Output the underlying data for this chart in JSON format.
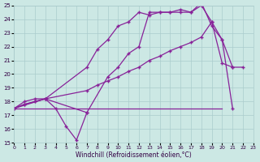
{
  "xlabel": "Windchill (Refroidissement éolien,°C)",
  "xlim": [
    0,
    23
  ],
  "ylim": [
    15,
    25
  ],
  "bg_color": "#cce8e4",
  "grid_color": "#aacccc",
  "line_color": "#882299",
  "series": [
    {
      "x": [
        0,
        1,
        2,
        3,
        4,
        5,
        6,
        7
      ],
      "y": [
        17.5,
        18.0,
        18.2,
        18.2,
        17.5,
        16.2,
        15.2,
        17.2
      ],
      "has_markers": true
    },
    {
      "x": [
        0,
        16,
        20
      ],
      "y": [
        17.5,
        17.5,
        17.5
      ],
      "has_markers": false
    },
    {
      "x": [
        0,
        1,
        2,
        3,
        7,
        8,
        9,
        10,
        11,
        12,
        13,
        14,
        15,
        16,
        17,
        18,
        19,
        20,
        21,
        22
      ],
      "y": [
        17.5,
        17.8,
        18.0,
        18.2,
        18.8,
        19.2,
        19.5,
        19.8,
        20.2,
        20.5,
        21.0,
        21.3,
        21.7,
        22.0,
        22.3,
        22.7,
        23.8,
        22.5,
        20.5,
        20.5
      ],
      "has_markers": true
    },
    {
      "x": [
        0,
        1,
        2,
        3,
        7,
        8,
        9,
        10,
        11,
        12,
        13,
        14,
        15,
        16,
        17,
        18,
        19,
        20,
        21
      ],
      "y": [
        17.5,
        17.8,
        18.0,
        18.2,
        20.5,
        21.8,
        22.5,
        23.5,
        23.8,
        24.5,
        24.3,
        24.5,
        24.5,
        24.7,
        24.5,
        25.0,
        23.8,
        20.8,
        20.5
      ],
      "has_markers": true
    },
    {
      "comment": "steep line: from (0,17.5) -> (3,18.2) -> (7,17.2) -> steep rise to (12,22) -> (13,24.5) -> flat top -> (18,25.2) -> drop to (21,17.5)",
      "x": [
        0,
        3,
        7,
        9,
        10,
        11,
        12,
        13,
        14,
        15,
        16,
        17,
        18,
        19,
        20,
        21
      ],
      "y": [
        17.5,
        18.2,
        17.2,
        19.8,
        20.5,
        21.5,
        22.0,
        24.5,
        24.5,
        24.5,
        24.5,
        24.5,
        25.2,
        23.5,
        22.5,
        17.5
      ],
      "has_markers": true
    }
  ]
}
